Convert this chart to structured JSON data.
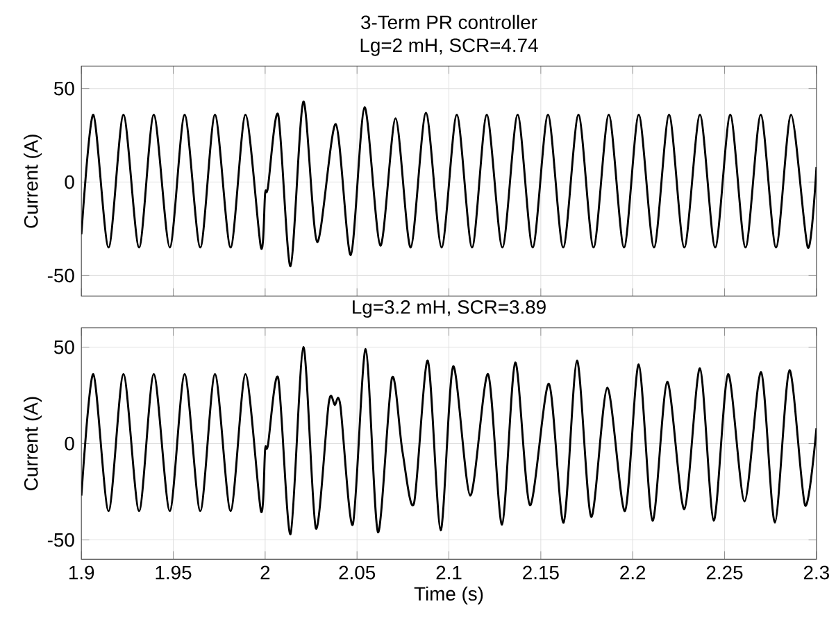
{
  "chart_data": [
    {
      "type": "line",
      "title": "3-Term PR controller",
      "subtitle": "Lg=2 mH, SCR=4.74",
      "ylabel": "Current (A)",
      "grid": true,
      "tick_labels": "y",
      "xlim": [
        1.9,
        2.3
      ],
      "ylim": [
        -61,
        62
      ],
      "xticks": [
        1.9,
        1.95,
        2,
        2.05,
        2.1,
        2.15,
        2.2,
        2.25,
        2.3
      ],
      "yticks": [
        -50,
        0,
        50
      ],
      "x": [
        1.9,
        1.9065,
        1.9148,
        1.9229,
        1.9314,
        1.9394,
        1.9481,
        1.9562,
        1.9647,
        1.9727,
        1.9812,
        1.9893,
        1.9977,
        2.0,
        2.0015,
        2.0071,
        2.0138,
        2.0208,
        2.0283,
        2.0384,
        2.0466,
        2.0541,
        2.0627,
        2.071,
        2.0792,
        2.0875,
        2.096,
        2.1043,
        2.1126,
        2.1206,
        2.1291,
        2.1374,
        2.1456,
        2.1539,
        2.1622,
        2.1705,
        2.1787,
        2.187,
        2.1953,
        2.2033,
        2.2116,
        2.2198,
        2.2281,
        2.2366,
        2.2449,
        2.2531,
        2.2614,
        2.2697,
        2.278,
        2.2862,
        2.2953,
        2.3
      ],
      "series": [
        {
          "color": "#000000",
          "values": [
            -28,
            36,
            -35,
            36,
            -35,
            36,
            -35,
            36,
            -35,
            36,
            -35,
            36,
            -35,
            -6,
            -3,
            36,
            -45,
            43,
            -32,
            31,
            -39,
            40,
            -34,
            34,
            -35,
            37,
            -35,
            36,
            -35,
            36,
            -35,
            36,
            -35,
            36,
            -35,
            36,
            -35,
            36,
            -35,
            36,
            -35,
            36,
            -35,
            36,
            -35,
            36,
            -35,
            36,
            -35,
            36,
            -35,
            8
          ]
        }
      ]
    },
    {
      "type": "line",
      "title": "Lg=3.2 mH, SCR=3.89",
      "xlabel": "Time (s)",
      "ylabel": "Current (A)",
      "grid": true,
      "xlim": [
        1.9,
        2.3
      ],
      "ylim": [
        -60,
        60
      ],
      "xticks": [
        1.9,
        1.95,
        2,
        2.05,
        2.1,
        2.15,
        2.2,
        2.25,
        2.3
      ],
      "yticks": [
        -50,
        0,
        50
      ],
      "x": [
        1.9,
        1.9065,
        1.9148,
        1.9229,
        1.9314,
        1.9394,
        1.9481,
        1.9562,
        1.9647,
        1.9727,
        1.9812,
        1.9893,
        1.9977,
        2.0,
        2.0015,
        2.0071,
        2.0138,
        2.0208,
        2.0276,
        2.0346,
        2.0379,
        2.0409,
        2.0477,
        2.0547,
        2.0614,
        2.069,
        2.0747,
        2.081,
        2.0885,
        2.0955,
        2.1023,
        2.1116,
        2.1213,
        2.1289,
        2.1361,
        2.1441,
        2.1544,
        2.1624,
        2.1697,
        2.1774,
        2.1862,
        2.1958,
        2.2033,
        2.2108,
        2.2188,
        2.2281,
        2.2366,
        2.2441,
        2.2519,
        2.2609,
        2.2699,
        2.2774,
        2.2853,
        2.2938,
        2.3
      ],
      "series": [
        {
          "color": "#000000",
          "values": [
            -27,
            36,
            -35,
            36,
            -35,
            36,
            -35,
            36,
            -35,
            36,
            -35,
            36,
            -35,
            -3,
            -1,
            34,
            -47,
            50,
            -44,
            21,
            20,
            20,
            -42,
            49,
            -46,
            34,
            -4,
            -31,
            43,
            -45,
            40,
            -27,
            36,
            -42,
            42,
            -32,
            31,
            -41,
            43,
            -38,
            29,
            -35,
            41,
            -40,
            32,
            -34,
            39,
            -40,
            36,
            -30,
            37,
            -41,
            38,
            -32,
            8
          ]
        }
      ]
    }
  ]
}
